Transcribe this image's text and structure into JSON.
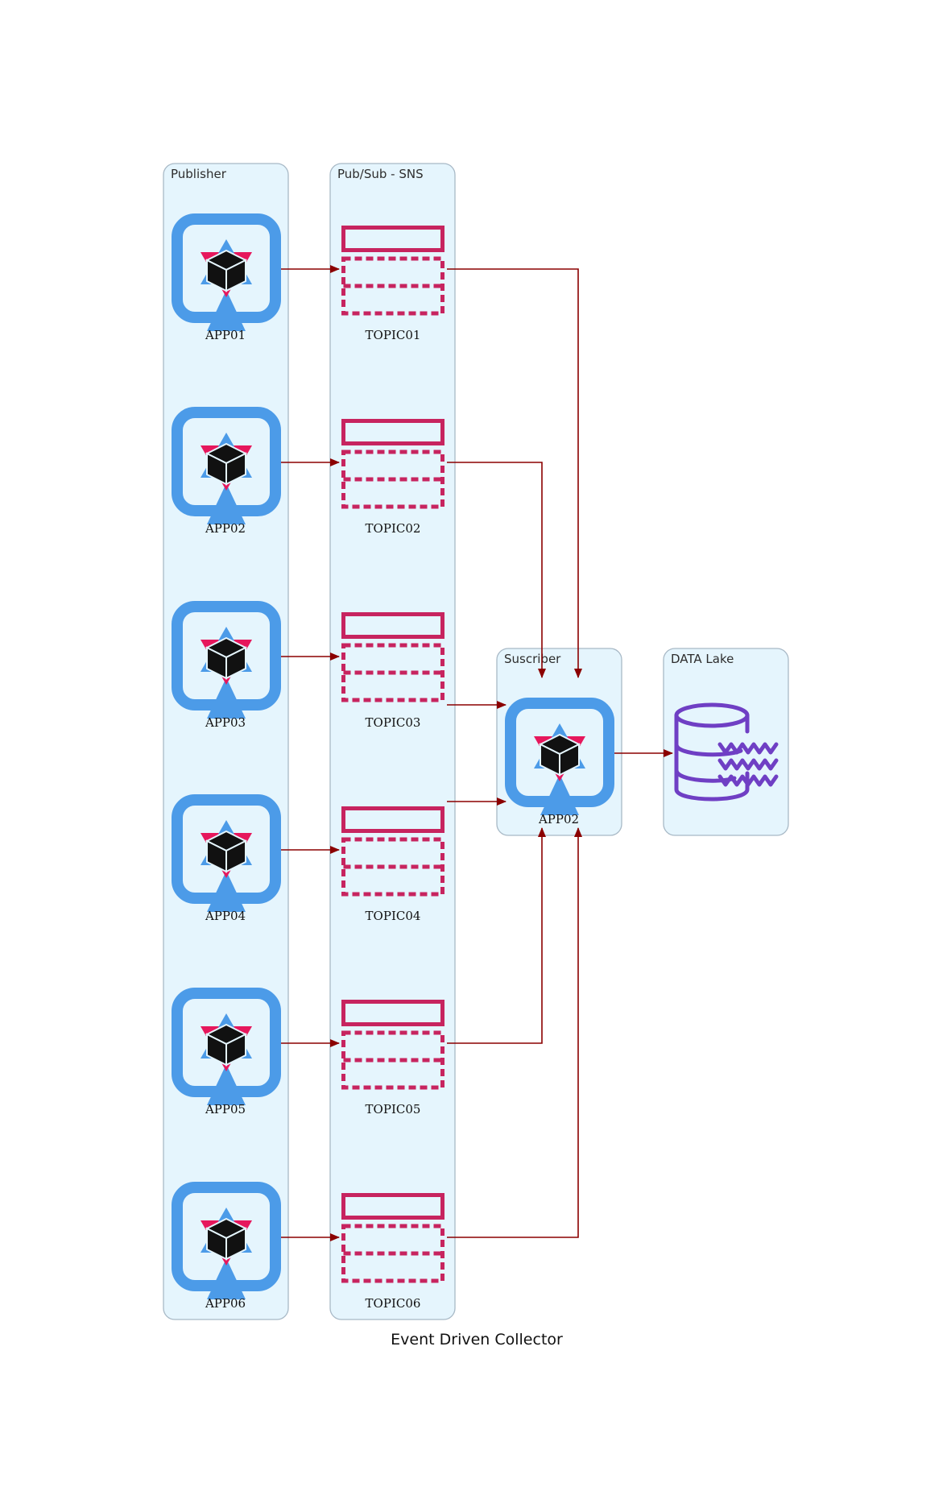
{
  "title": "Event Driven Collector",
  "colors": {
    "cluster_fill": "#e5f5fd",
    "cluster_border": "#a8b9c6",
    "edge": "#8b0000",
    "app_blue": "#4c9be8",
    "app_red": "#e6175c",
    "app_cube": "#111111",
    "topic_magenta": "#c7245f",
    "datalake_purple": "#6f3fc4"
  },
  "clusters": {
    "publisher": "Publisher",
    "pubsub": "Pub/Sub - SNS",
    "subscriber": "Suscriber",
    "datalake": "DATA Lake"
  },
  "publishers": [
    {
      "label": "APP01",
      "icon": "container-app-icon"
    },
    {
      "label": "APP02",
      "icon": "container-app-icon"
    },
    {
      "label": "APP03",
      "icon": "container-app-icon"
    },
    {
      "label": "APP04",
      "icon": "container-app-icon"
    },
    {
      "label": "APP05",
      "icon": "container-app-icon"
    },
    {
      "label": "APP06",
      "icon": "container-app-icon"
    }
  ],
  "topics": [
    {
      "label": "TOPIC01",
      "icon": "sns-topic-icon"
    },
    {
      "label": "TOPIC02",
      "icon": "sns-topic-icon"
    },
    {
      "label": "TOPIC03",
      "icon": "sns-topic-icon"
    },
    {
      "label": "TOPIC04",
      "icon": "sns-topic-icon"
    },
    {
      "label": "TOPIC05",
      "icon": "sns-topic-icon"
    },
    {
      "label": "TOPIC06",
      "icon": "sns-topic-icon"
    }
  ],
  "subscriber": {
    "label": "APP02",
    "icon": "container-app-icon"
  },
  "datalake": {
    "label": "",
    "icon": "data-lake-icon"
  },
  "edges": [
    {
      "from": "APP01",
      "to": "TOPIC01"
    },
    {
      "from": "APP02",
      "to": "TOPIC02"
    },
    {
      "from": "APP03",
      "to": "TOPIC03"
    },
    {
      "from": "APP04",
      "to": "TOPIC04"
    },
    {
      "from": "APP05",
      "to": "TOPIC05"
    },
    {
      "from": "APP06",
      "to": "TOPIC06"
    },
    {
      "from": "TOPIC01",
      "to": "Suscriber APP02"
    },
    {
      "from": "TOPIC02",
      "to": "Suscriber APP02"
    },
    {
      "from": "TOPIC03",
      "to": "Suscriber APP02"
    },
    {
      "from": "TOPIC04",
      "to": "Suscriber APP02"
    },
    {
      "from": "TOPIC05",
      "to": "Suscriber APP02"
    },
    {
      "from": "TOPIC06",
      "to": "Suscriber APP02"
    },
    {
      "from": "Suscriber APP02",
      "to": "DATA Lake"
    }
  ]
}
